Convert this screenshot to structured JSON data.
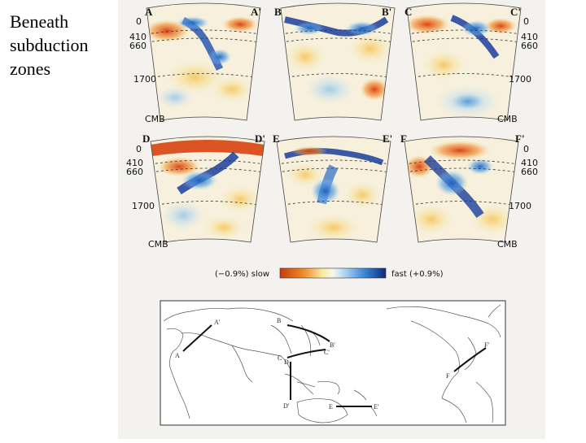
{
  "caption": {
    "lines": [
      "Beneath",
      "subduction",
      "zones"
    ]
  },
  "panels": [
    {
      "left": "A",
      "right": "A'"
    },
    {
      "left": "B",
      "right": "B'"
    },
    {
      "left": "C",
      "right": "C'"
    },
    {
      "left": "D",
      "right": "D'"
    },
    {
      "left": "E",
      "right": "E'"
    },
    {
      "left": "F",
      "right": "F'"
    }
  ],
  "depth_labels": [
    "0",
    "410",
    "660",
    "1700",
    "CMB"
  ],
  "colorbar": {
    "slow_label": "(−0.9%) slow",
    "fast_label": "fast (+0.9%)"
  },
  "map_labels": [
    "A'",
    "A",
    "B",
    "B'",
    "C",
    "C'",
    "D",
    "D'",
    "E",
    "E'",
    "F",
    "F'"
  ]
}
